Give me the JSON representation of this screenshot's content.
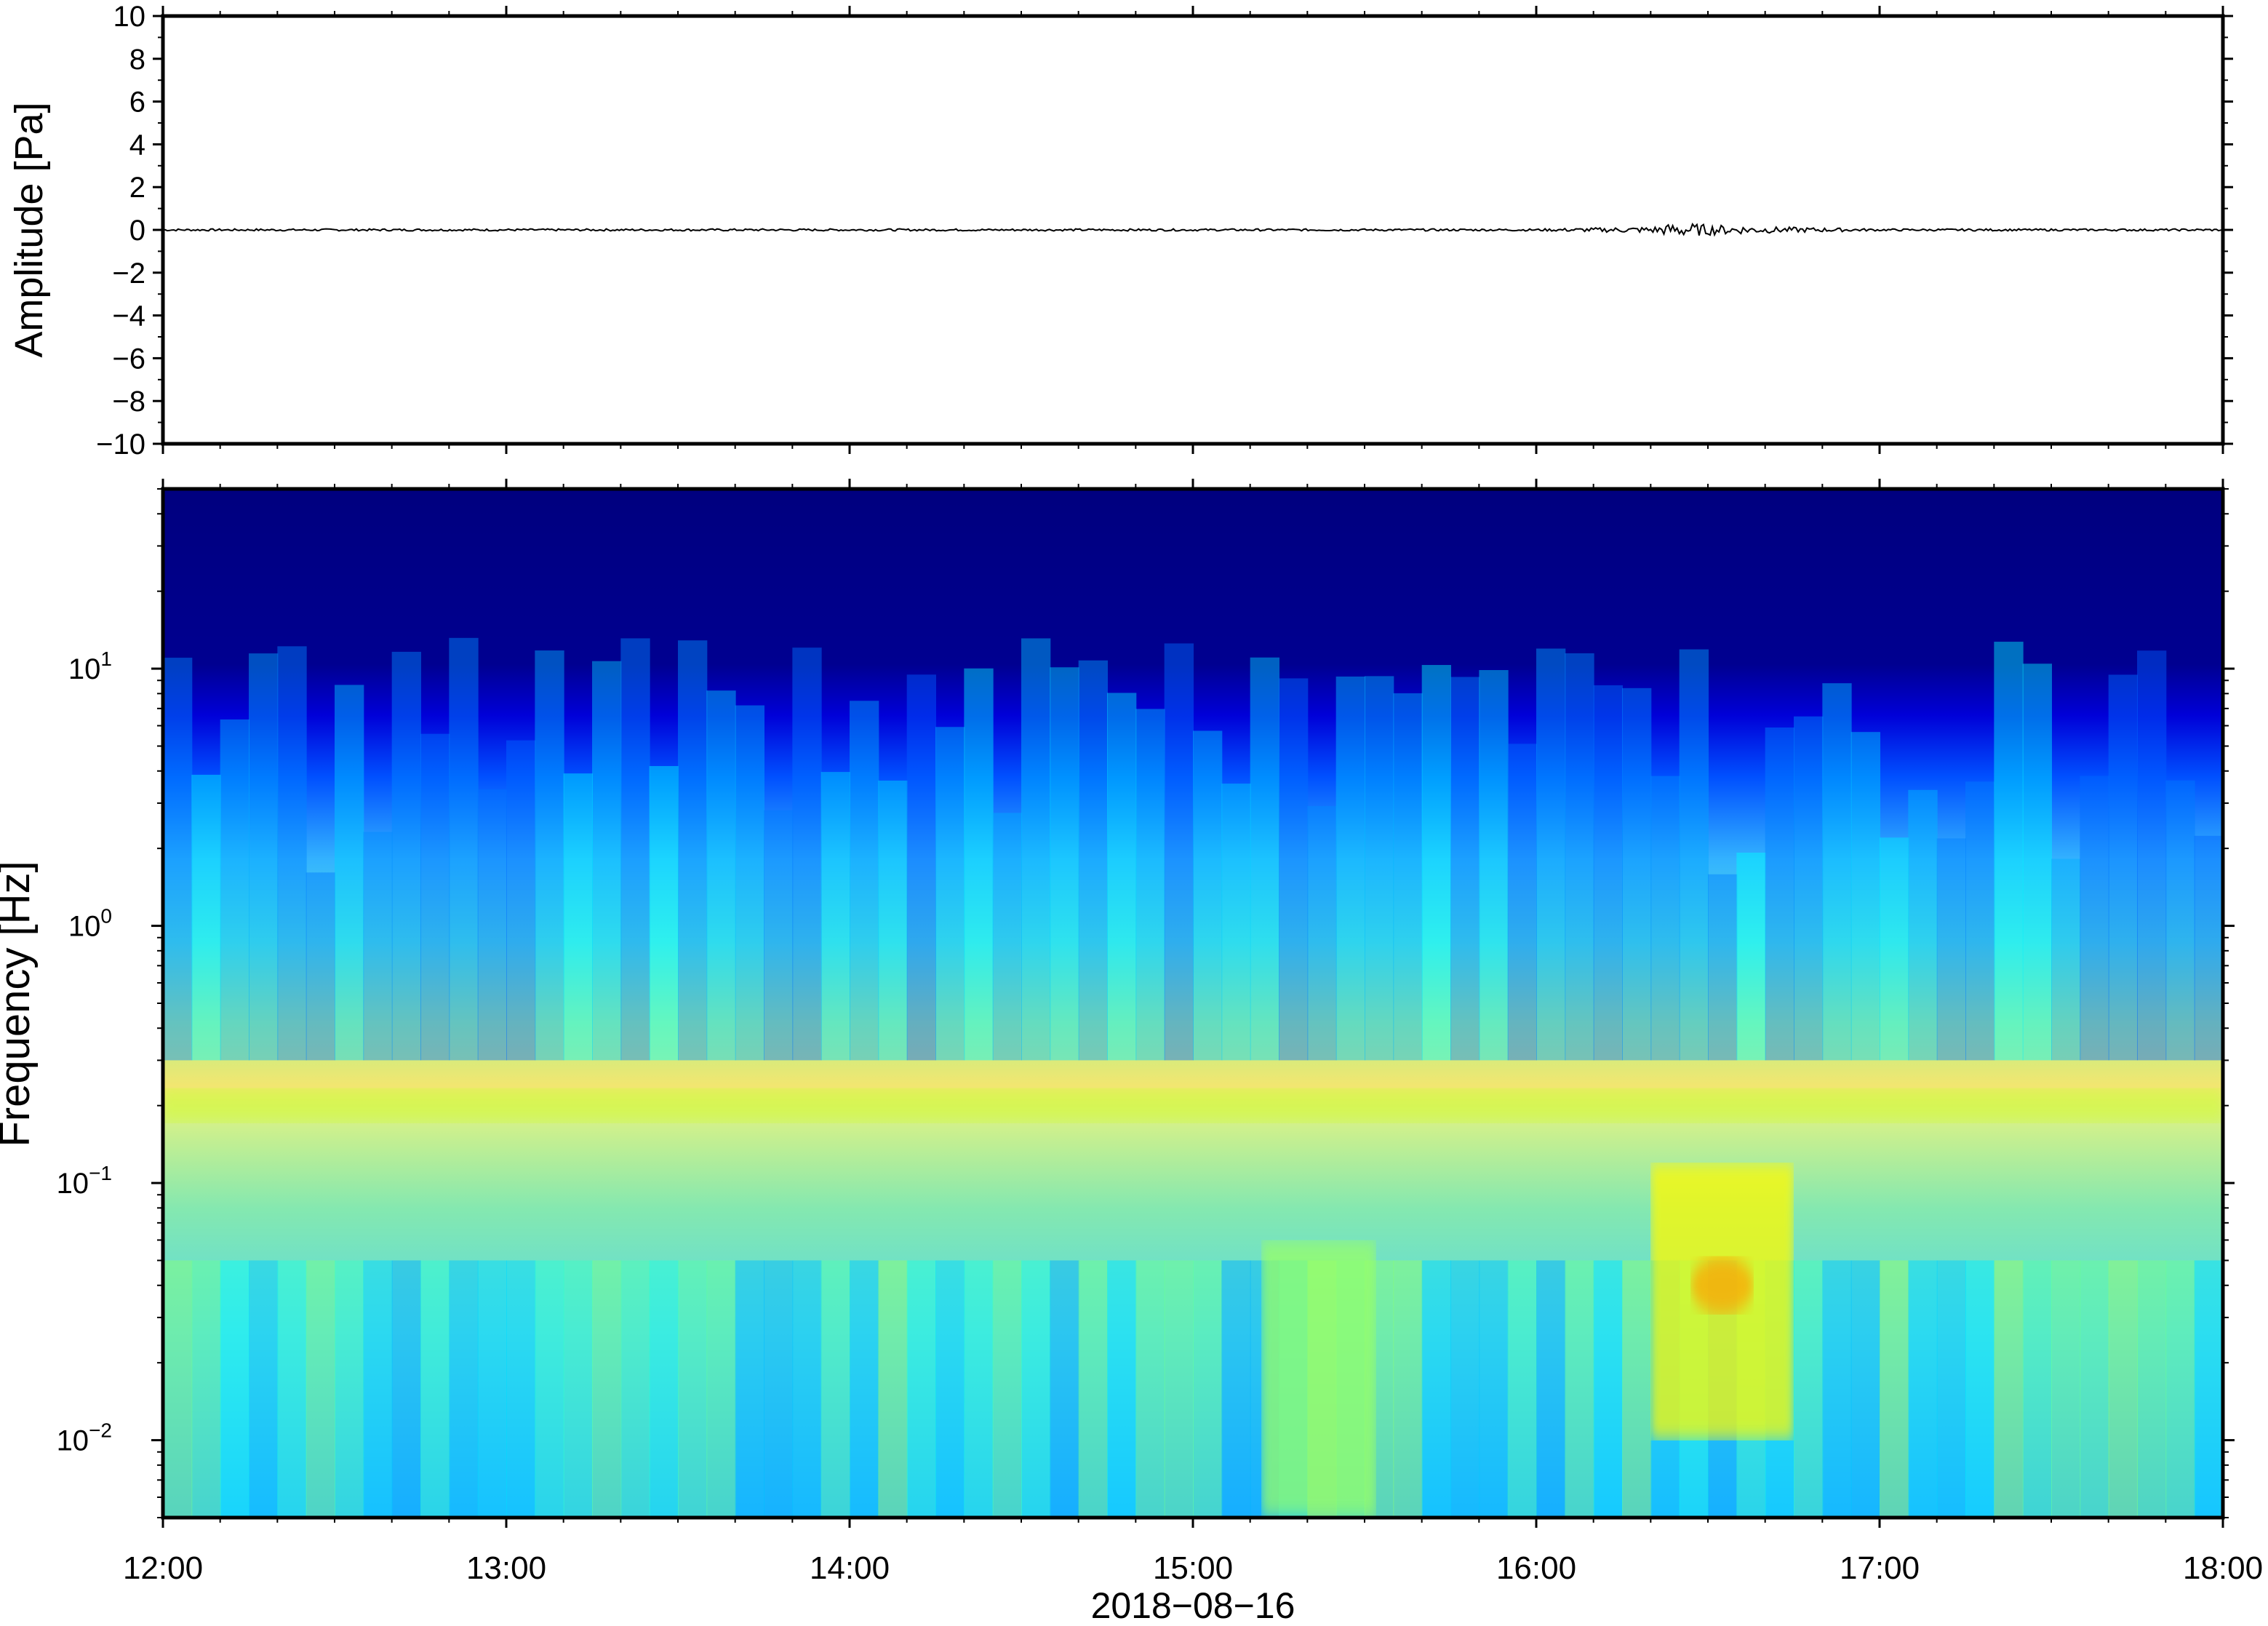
{
  "chart_data": [
    {
      "type": "line",
      "panel": "waveform",
      "ylabel": "Amplitude [Pa]",
      "ylim": [
        -10,
        10
      ],
      "yticks": [
        10,
        8,
        6,
        4,
        2,
        0,
        -2,
        -4,
        -6,
        -8,
        -10
      ],
      "ytick_labels": [
        "10",
        "8",
        "6",
        "4",
        "2",
        "0",
        "−2",
        "−4",
        "−6",
        "−8",
        "−10"
      ],
      "xlim": [
        "12:00",
        "18:00"
      ],
      "series": [
        {
          "color": "#000000",
          "x": [
            "12:00",
            "12:30",
            "13:00",
            "13:30",
            "14:00",
            "14:30",
            "15:00",
            "15:30",
            "16:00",
            "16:20",
            "16:25",
            "16:30",
            "16:40",
            "17:00",
            "17:30",
            "18:00"
          ],
          "values": [
            0,
            0,
            0,
            0,
            0,
            0,
            0,
            0,
            0,
            0.1,
            0.3,
            0.2,
            0.1,
            0,
            0,
            0
          ]
        }
      ]
    },
    {
      "type": "heatmap",
      "panel": "spectrogram",
      "ylabel": "Frequency [Hz]",
      "xlabel": "2018−08−16",
      "yscale": "log",
      "ylim": [
        0.005,
        50
      ],
      "yticks": [
        10,
        1,
        0.1,
        0.01
      ],
      "ytick_labels": [
        {
          "base": "10",
          "exp": "1"
        },
        {
          "base": "10",
          "exp": "0"
        },
        {
          "base": "10",
          "exp": "−1"
        },
        {
          "base": "10",
          "exp": "−2"
        }
      ],
      "xticks": [
        "12:00",
        "13:00",
        "14:00",
        "15:00",
        "16:00",
        "17:00",
        "18:00"
      ],
      "colormap": [
        "#00007f",
        "#0000ff",
        "#007fff",
        "#00ffff",
        "#7fff7f",
        "#ffff00",
        "#ff7f00",
        "#ff0000"
      ],
      "features": [
        {
          "time_range": [
            "12:00",
            "18:00"
          ],
          "frequency_hz": 0.2,
          "level": 0.66
        },
        {
          "time_range": [
            "15:12",
            "15:32"
          ],
          "frequency_hz": [
            0.005,
            0.06
          ],
          "level": 0.6
        },
        {
          "time_range": [
            "16:20",
            "16:45"
          ],
          "frequency_hz": [
            0.01,
            0.12
          ],
          "level": 0.72
        }
      ]
    }
  ]
}
